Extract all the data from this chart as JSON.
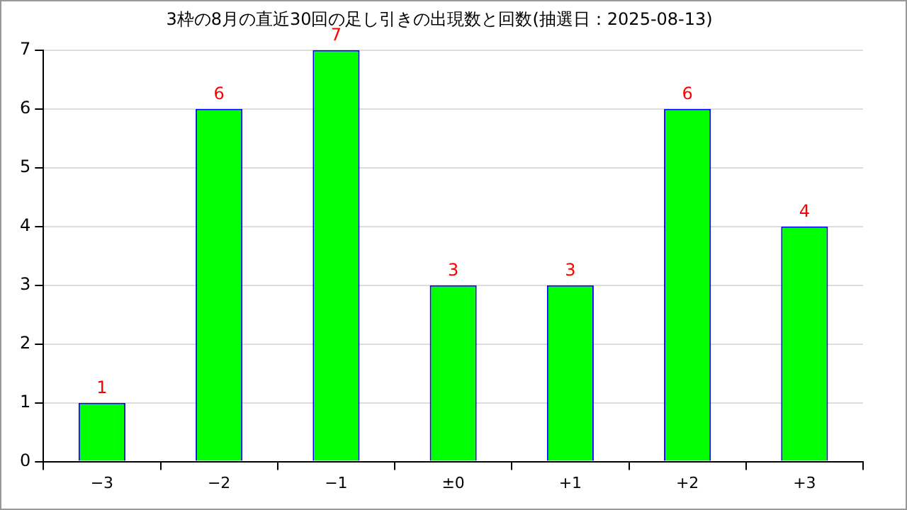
{
  "chart_data": {
    "type": "bar",
    "title": "3枠の8月の直近30回の足し引きの出現数と回数(抽選日：2025-08-13)",
    "categories": [
      "−3",
      "−2",
      "−1",
      "±0",
      "+1",
      "+2",
      "+3"
    ],
    "values": [
      1,
      6,
      7,
      3,
      3,
      6,
      4
    ],
    "color": "#00ff00",
    "ylim": [
      0,
      7
    ],
    "yticks": [
      0,
      1,
      2,
      3,
      4,
      5,
      6,
      7
    ],
    "grid": "y",
    "data_labels": true
  }
}
